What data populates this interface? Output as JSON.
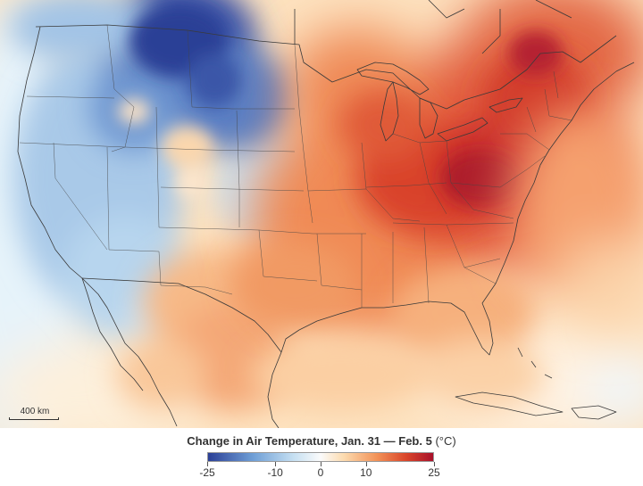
{
  "map": {
    "scale_label": "400 km"
  },
  "legend": {
    "title": "Change in Air Temperature, Jan. 31 — Feb. 5",
    "unit": "(°C)",
    "ticks": [
      {
        "label": "-25",
        "value": -25
      },
      {
        "label": "-10",
        "value": -10
      },
      {
        "label": "0",
        "value": 0
      },
      {
        "label": "10",
        "value": 10
      },
      {
        "label": "25",
        "value": 25
      }
    ],
    "min": -25,
    "max": 25,
    "colors": {
      "cold_extreme": "#2b3f96",
      "cold": "#6f9fd6",
      "cool": "#c6e0f2",
      "neutral": "#fbfbfb",
      "warm_light": "#fcdcb1",
      "warm": "#f29257",
      "hot": "#d9452a",
      "hot_extreme": "#a8102a"
    }
  },
  "colors": {
    "ocean_warm": "#fde7c8",
    "ocean_cool": "#e4f2fa",
    "borders": "#3a3a3a"
  }
}
